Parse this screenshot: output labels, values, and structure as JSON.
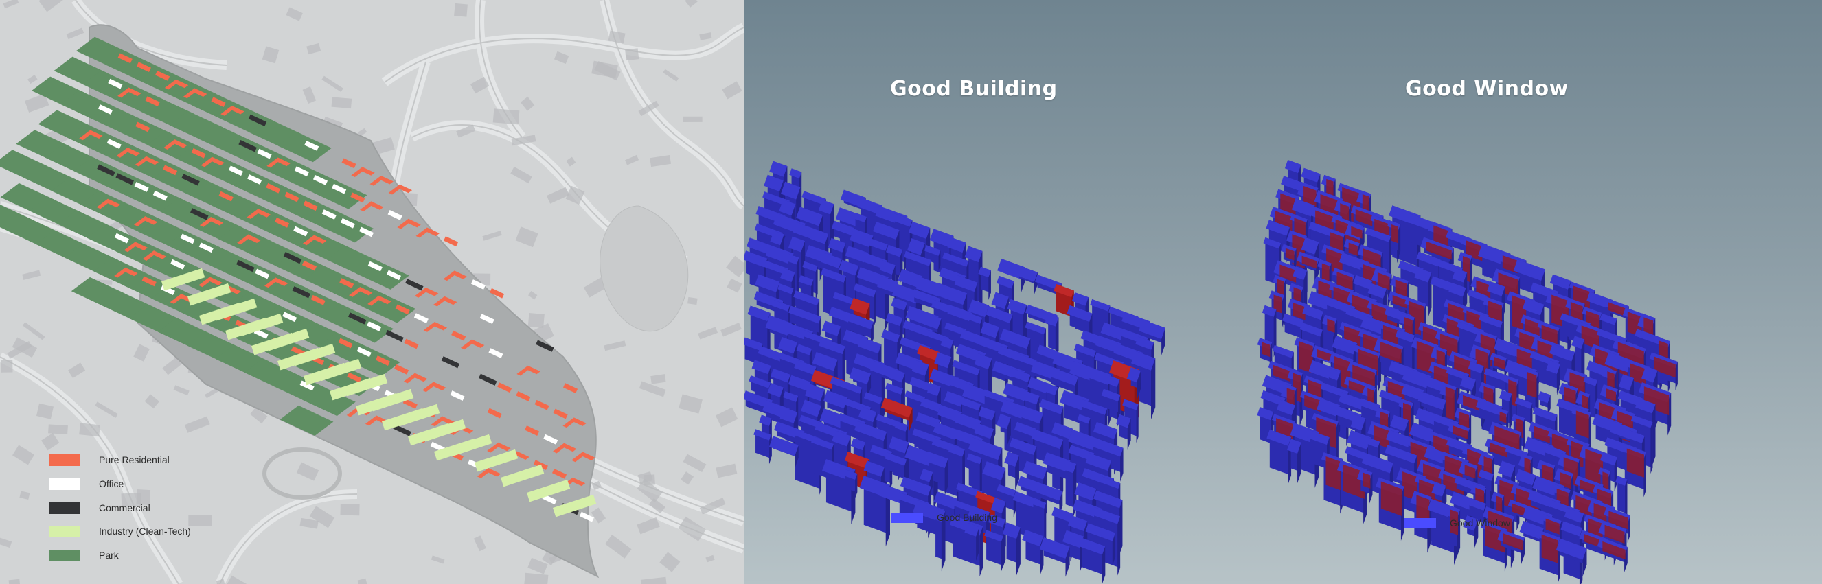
{
  "colors": {
    "residential": "#f36a4c",
    "office": "#ffffff",
    "commercial": "#333436",
    "industry": "#d6f0a8",
    "park": "#5f8f63",
    "good_blue": "#4a4cff",
    "building_blue": "#2b2aa6",
    "flag_red": "#b02020"
  },
  "left_map": {
    "legend": [
      {
        "label": "Pure Residential",
        "color": "#f36a4c"
      },
      {
        "label": "Office",
        "color": "#ffffff"
      },
      {
        "label": "Commercial",
        "color": "#333436"
      },
      {
        "label": "Industry (Clean-Tech)",
        "color": "#d6f0a8"
      },
      {
        "label": "Park",
        "color": "#5f8f63"
      }
    ]
  },
  "good_building": {
    "title": "Good Building",
    "legend_label": "Good Building"
  },
  "good_window": {
    "title": "Good Window",
    "legend_label": "Good Window"
  }
}
